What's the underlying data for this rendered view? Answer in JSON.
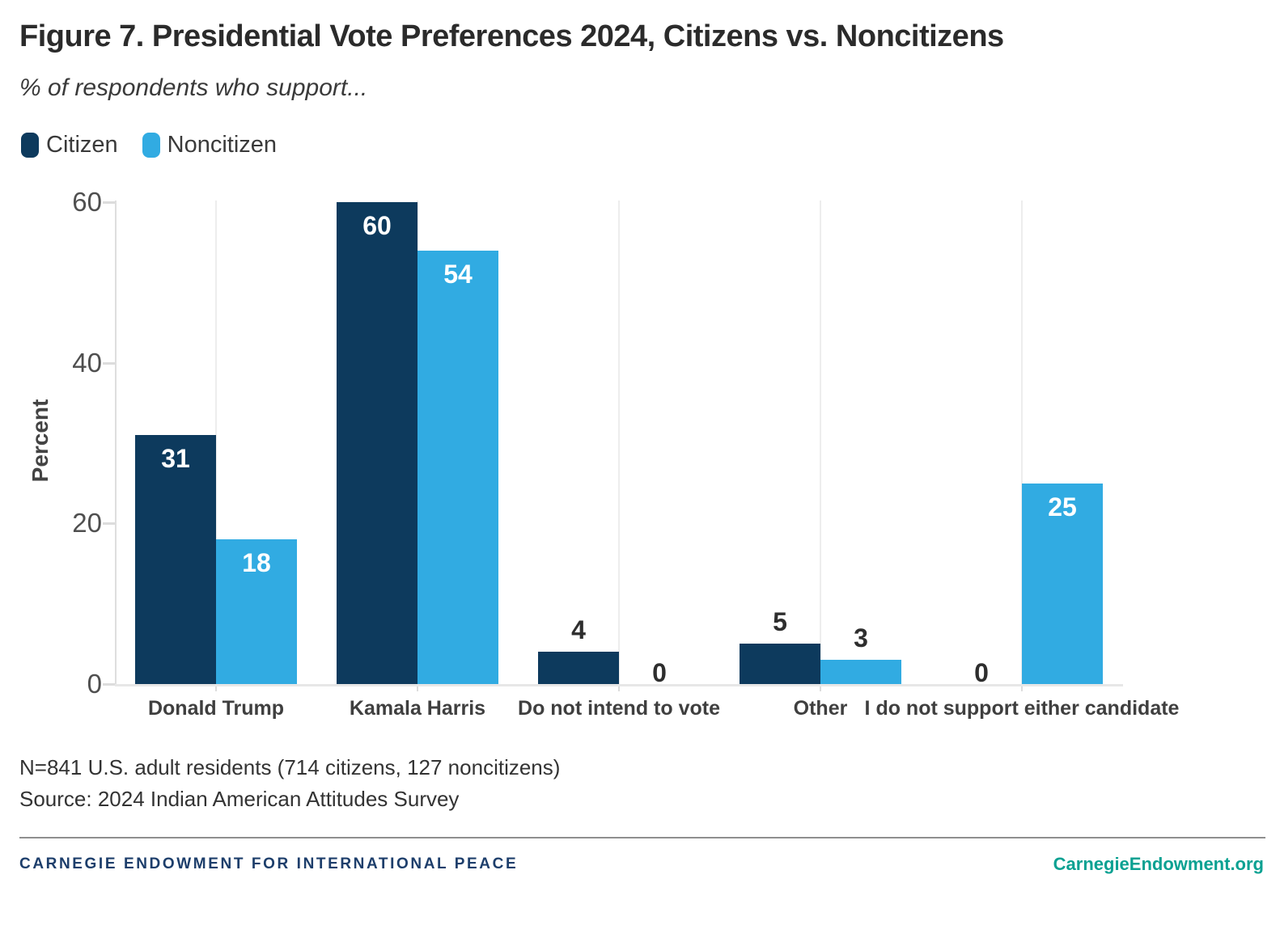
{
  "header": {
    "title": "Figure 7. Presidential Vote Preferences 2024, Citizens vs. Noncitizens",
    "subtitle": "% of respondents who support..."
  },
  "legend": {
    "items": [
      {
        "label": "Citizen",
        "color": "#0d3a5d"
      },
      {
        "label": "Noncitizen",
        "color": "#31abe2"
      }
    ]
  },
  "chart_data": {
    "type": "bar",
    "categories": [
      "Donald Trump",
      "Kamala Harris",
      "Do not intend to vote",
      "Other",
      "I do not support either candidate"
    ],
    "series": [
      {
        "name": "Citizen",
        "color": "#0d3a5d",
        "values": [
          31,
          60,
          4,
          5,
          0
        ]
      },
      {
        "name": "Noncitizen",
        "color": "#31abe2",
        "values": [
          18,
          54,
          0,
          3,
          25
        ]
      }
    ],
    "title": "Figure 7. Presidential Vote Preferences 2024, Citizens vs. Noncitizens",
    "xlabel": "",
    "ylabel": "Percent",
    "yticks": [
      0,
      20,
      40,
      60
    ],
    "ylim": [
      0,
      60
    ],
    "grid": "vertical category gridlines only",
    "legend_position": "top-left",
    "value_labels": "white inside large bars, dark above small bars"
  },
  "notes": {
    "sample": "N=841 U.S. adult residents (714 citizens, 127 noncitizens)",
    "source": "Source: 2024 Indian American Attitudes Survey"
  },
  "footer": {
    "brand": "CARNEGIE ENDOWMENT FOR INTERNATIONAL PEACE",
    "brand_color": "#1d3e6b",
    "site": "CarnegieEndowment.org",
    "site_color": "#0ba192"
  }
}
